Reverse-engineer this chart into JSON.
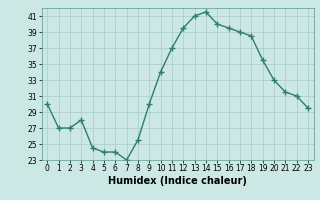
{
  "x": [
    0,
    1,
    2,
    3,
    4,
    5,
    6,
    7,
    8,
    9,
    10,
    11,
    12,
    13,
    14,
    15,
    16,
    17,
    18,
    19,
    20,
    21,
    22,
    23
  ],
  "y": [
    30,
    27,
    27,
    28,
    24.5,
    24,
    24,
    23,
    25.5,
    30,
    34,
    37,
    39.5,
    41,
    41.5,
    40,
    39.5,
    39,
    38.5,
    35.5,
    33,
    31.5,
    31,
    29.5
  ],
  "line_color": "#2e7d6e",
  "marker": "+",
  "marker_size": 4,
  "bg_color": "#cce8e4",
  "grid_color": "#b0d0cc",
  "xlabel": "Humidex (Indice chaleur)",
  "xlim": [
    -0.5,
    23.5
  ],
  "ylim": [
    23,
    42
  ],
  "yticks": [
    23,
    25,
    27,
    29,
    31,
    33,
    35,
    37,
    39,
    41
  ],
  "xticks": [
    0,
    1,
    2,
    3,
    4,
    5,
    6,
    7,
    8,
    9,
    10,
    11,
    12,
    13,
    14,
    15,
    16,
    17,
    18,
    19,
    20,
    21,
    22,
    23
  ],
  "tick_fontsize": 5.5,
  "xlabel_fontsize": 7,
  "line_width": 1.0
}
